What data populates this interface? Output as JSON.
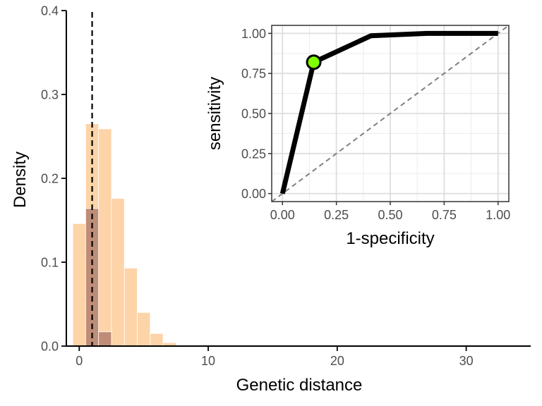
{
  "chart_data": [
    {
      "type": "bar",
      "subtype": "histogram",
      "xlabel": "Genetic distance",
      "ylabel": "Density",
      "xlim": [
        -1,
        35
      ],
      "ylim": [
        0,
        0.4
      ],
      "x_ticks": [
        0,
        10,
        20,
        30
      ],
      "y_ticks": [
        0.0,
        0.1,
        0.2,
        0.3,
        0.4
      ],
      "x_tick_labels": [
        "0",
        "10",
        "20",
        "30"
      ],
      "y_tick_labels": [
        "0.0",
        "0.1",
        "0.2",
        "0.3",
        "0.4"
      ],
      "bin_width": 1,
      "grid": false,
      "legend": "none",
      "series": [
        {
          "color": "#fdc690",
          "bin_centers": [
            0,
            1,
            2,
            3,
            4,
            5,
            6,
            7
          ],
          "values": [
            0.146,
            0.265,
            0.259,
            0.176,
            0.093,
            0.04,
            0.015,
            0.004
          ]
        },
        {
          "color": "#b4806e",
          "bin_centers": [
            1,
            2
          ],
          "values": [
            0.164,
            0.017
          ]
        }
      ],
      "vline": {
        "x": 1,
        "style": "dashed",
        "color": "#000000"
      }
    },
    {
      "type": "line",
      "subtype": "roc-curve",
      "xlabel": "1-specificity",
      "ylabel": "sensitivity",
      "xlim": [
        0,
        1
      ],
      "ylim": [
        0,
        1
      ],
      "x_ticks": [
        0,
        0.25,
        0.5,
        0.75,
        1.0
      ],
      "y_ticks": [
        0,
        0.25,
        0.5,
        0.75,
        1.0
      ],
      "x_tick_labels": [
        "0.00",
        "0.25",
        "0.50",
        "0.75",
        "1.00"
      ],
      "y_tick_labels": [
        "0.00",
        "0.25",
        "0.50",
        "0.75",
        "1.00"
      ],
      "grid": true,
      "series": [
        {
          "color": "#000000",
          "x": [
            0,
            0.145,
            0.41,
            0.67,
            1.0
          ],
          "y": [
            0,
            0.82,
            0.985,
            1.0,
            1.0
          ]
        }
      ],
      "highlight_point": {
        "x": 0.145,
        "y": 0.82,
        "color": "#7fff00"
      },
      "reference_line": {
        "x": [
          0,
          1
        ],
        "y": [
          0,
          1
        ],
        "style": "dashed",
        "color": "#808080"
      }
    }
  ]
}
